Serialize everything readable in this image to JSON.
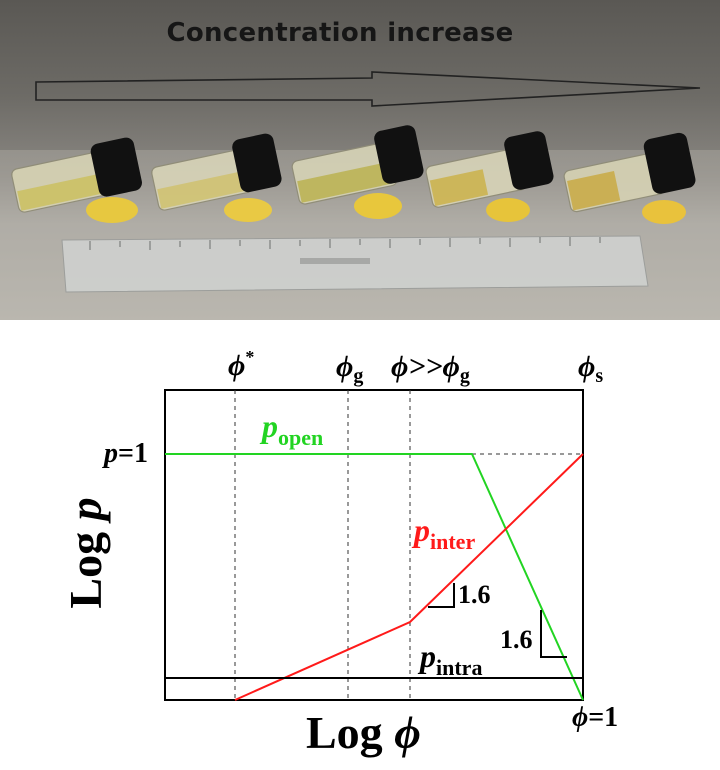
{
  "photo": {
    "title": "Concentration increase",
    "vials": [
      "vial-1",
      "vial-2",
      "vial-3",
      "vial-4",
      "vial-5"
    ]
  },
  "diagram": {
    "phi_labels": {
      "phi_star": {
        "symbol": "ϕ",
        "sup": "*"
      },
      "phi_g": {
        "symbol": "ϕ",
        "sub": "g"
      },
      "phi_gg": {
        "symbol": "ϕ>>ϕ",
        "sub": "g"
      },
      "phi_s": {
        "symbol": "ϕ",
        "sub": "s"
      }
    },
    "x_axis_label": {
      "text": "Log ",
      "var": "ϕ"
    },
    "y_axis_label": {
      "text": "Log ",
      "var": "p"
    },
    "p_equals_one": {
      "var": "p",
      "text": "=1"
    },
    "phi_equals_one": {
      "var": "ϕ",
      "text": "=1"
    },
    "curves": [
      {
        "symbol": "p",
        "sub": "open",
        "color": "#22d422"
      },
      {
        "symbol": "p",
        "sub": "inter",
        "color": "#ff1a1a"
      },
      {
        "symbol": "p",
        "sub": "intra",
        "color": "#000000"
      }
    ],
    "slope_labels": [
      "1.6",
      "1.6"
    ]
  }
}
